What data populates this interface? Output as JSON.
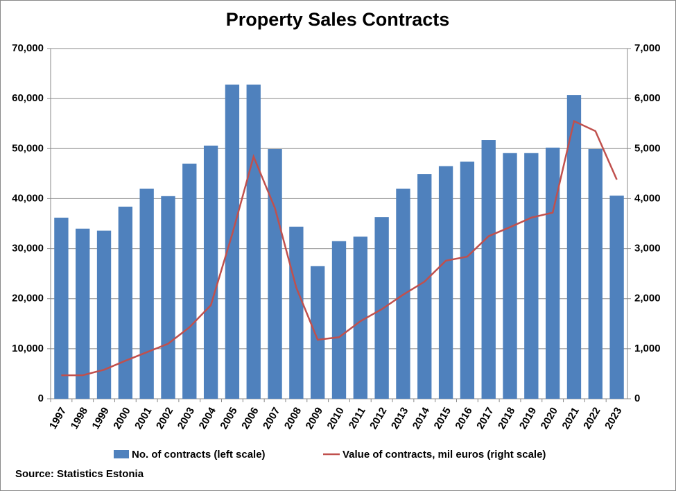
{
  "chart_data": {
    "type": "bar-line",
    "title": "Property Sales Contracts",
    "categories": [
      "1997",
      "1998",
      "1999",
      "2000",
      "2001",
      "2002",
      "2003",
      "2004",
      "2005",
      "2006",
      "2007",
      "2008",
      "2009",
      "2010",
      "2011",
      "2012",
      "2013",
      "2014",
      "2015",
      "2016",
      "2017",
      "2018",
      "2019",
      "2020",
      "2021",
      "2022",
      "2023"
    ],
    "series": [
      {
        "name": "No. of contracts (left scale)",
        "color": "#4f81bd",
        "type": "bar",
        "values": [
          36200,
          34000,
          33600,
          38400,
          42000,
          40500,
          47000,
          50600,
          62800,
          62800,
          49900,
          34400,
          26500,
          31500,
          32400,
          36300,
          42000,
          44900,
          46500,
          47400,
          51700,
          49100,
          49100,
          50200,
          60700,
          49900,
          40600
        ]
      },
      {
        "name": "Value of contracts, mil euros (right scale)",
        "color": "#c0504d",
        "type": "line",
        "axis": "y2",
        "values": [
          470,
          470,
          580,
          760,
          930,
          1100,
          1430,
          1870,
          3290,
          4840,
          3810,
          2220,
          1180,
          1230,
          1550,
          1790,
          2080,
          2340,
          2760,
          2840,
          3250,
          3430,
          3620,
          3720,
          5550,
          5350,
          4380
        ]
      }
    ],
    "ylim": [
      0,
      70000
    ],
    "yticks": [
      0,
      {
        "value": 10000,
        "label": "10,000"
      },
      {
        "value": 20000,
        "label": "20,000"
      },
      {
        "value": 30000,
        "label": "30,000"
      },
      {
        "value": 40000,
        "label": "40,000"
      },
      {
        "value": 50000,
        "label": "50,000"
      },
      {
        "value": 60000,
        "label": "60,000"
      },
      {
        "value": 70000,
        "label": "70,000"
      }
    ],
    "y2lim": [
      0,
      7000
    ],
    "y2ticks": [
      0,
      {
        "value": 1000,
        "label": "1,000"
      },
      {
        "value": 2000,
        "label": "2,000"
      },
      {
        "value": 3000,
        "label": "3,000"
      },
      {
        "value": 4000,
        "label": "4,000"
      },
      {
        "value": 5000,
        "label": "5,000"
      },
      {
        "value": 6000,
        "label": "6,000"
      },
      {
        "value": 7000,
        "label": "7,000"
      }
    ],
    "grid": true,
    "source": "Source: Statistics Estonia"
  }
}
